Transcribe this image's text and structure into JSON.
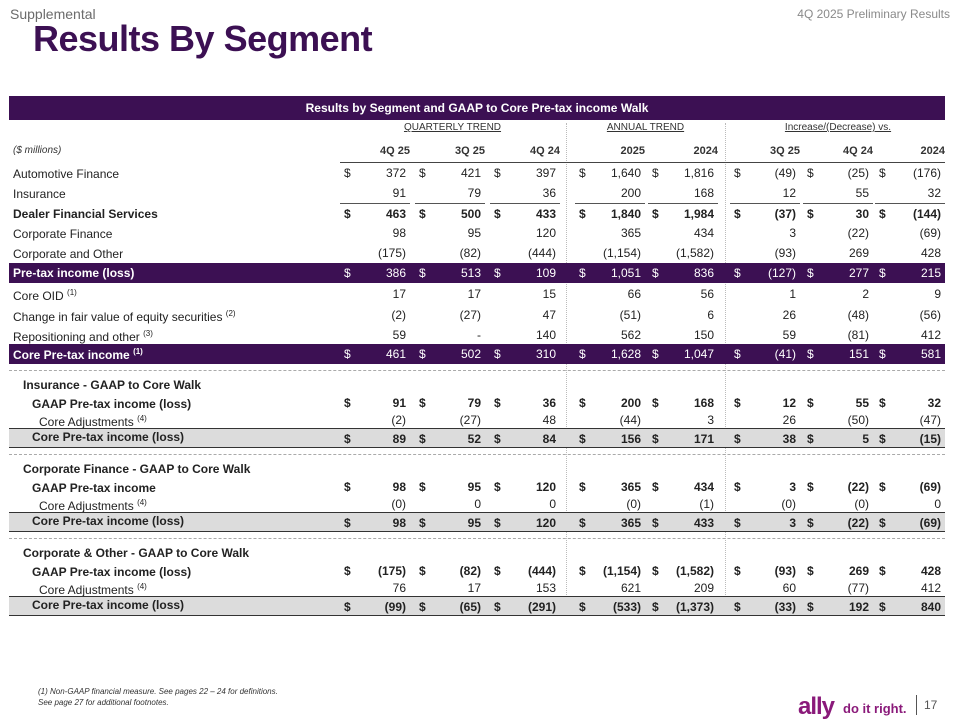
{
  "header": {
    "section": "Supplemental",
    "report": "4Q 2025 Preliminary Results",
    "title": "Results By Segment"
  },
  "table": {
    "title": "Results by Segment and GAAP to Core Pre-tax income Walk",
    "groups": {
      "quarterly": "QUARTERLY TREND",
      "annual": "ANNUAL TREND",
      "change": "Increase/(Decrease) vs."
    },
    "units": "($ millions)",
    "columns": [
      "4Q 25",
      "3Q 25",
      "4Q 24",
      "2025",
      "2024",
      "3Q 25",
      "4Q 24",
      "2024"
    ],
    "rows": [
      {
        "label": "Automotive Finance",
        "sup": "",
        "values": [
          "372",
          "421",
          "397",
          "1,640",
          "1,816",
          "(49)",
          "(25)",
          "(176)"
        ],
        "dollars": true
      },
      {
        "label": "Insurance",
        "sup": "",
        "values": [
          "91",
          "79",
          "36",
          "200",
          "168",
          "12",
          "55",
          "32"
        ]
      },
      {
        "label": "Dealer Financial Services",
        "sup": "",
        "values": [
          "463",
          "500",
          "433",
          "1,840",
          "1,984",
          "(37)",
          "30",
          "(144)"
        ],
        "dollars": true
      },
      {
        "label": "Corporate Finance",
        "sup": "",
        "values": [
          "98",
          "95",
          "120",
          "365",
          "434",
          "3",
          "(22)",
          "(69)"
        ]
      },
      {
        "label": "Corporate and Other",
        "sup": "",
        "values": [
          "(175)",
          "(82)",
          "(444)",
          "(1,154)",
          "(1,582)",
          "(93)",
          "269",
          "428"
        ]
      },
      {
        "label": "Pre-tax income (loss)",
        "sup": "",
        "values": [
          "386",
          "513",
          "109",
          "1,051",
          "836",
          "(127)",
          "277",
          "215"
        ],
        "dollars": true
      },
      {
        "label": "Core OID",
        "sup": "(1)",
        "values": [
          "17",
          "17",
          "15",
          "66",
          "56",
          "1",
          "2",
          "9"
        ]
      },
      {
        "label": "Change in fair value of equity securities",
        "sup": "(2)",
        "values": [
          "(2)",
          "(27)",
          "47",
          "(51)",
          "6",
          "26",
          "(48)",
          "(56)"
        ]
      },
      {
        "label": "Repositioning and other",
        "sup": "(3)",
        "values": [
          "59",
          "-",
          "140",
          "562",
          "150",
          "59",
          "(81)",
          "412"
        ]
      },
      {
        "label": "Core Pre-tax income",
        "sup": "(1)",
        "values": [
          "461",
          "502",
          "310",
          "1,628",
          "1,047",
          "(41)",
          "151",
          "581"
        ],
        "dollars": true
      }
    ],
    "sections": [
      {
        "title": "Insurance - GAAP to Core Walk",
        "rows": [
          {
            "label": "GAAP Pre-tax income (loss)",
            "sup": "",
            "values": [
              "91",
              "79",
              "36",
              "200",
              "168",
              "12",
              "55",
              "32"
            ],
            "dollars": true
          },
          {
            "label": "Core Adjustments",
            "sup": "(4)",
            "values": [
              "(2)",
              "(27)",
              "48",
              "(44)",
              "3",
              "26",
              "(50)",
              "(47)"
            ]
          },
          {
            "label": "Core Pre-tax income (loss)",
            "sup": "",
            "values": [
              "89",
              "52",
              "84",
              "156",
              "171",
              "38",
              "5",
              "(15)"
            ],
            "dollars": true
          }
        ]
      },
      {
        "title": "Corporate Finance - GAAP to Core Walk",
        "rows": [
          {
            "label": "GAAP Pre-tax income",
            "sup": "",
            "values": [
              "98",
              "95",
              "120",
              "365",
              "434",
              "3",
              "(22)",
              "(69)"
            ],
            "dollars": true
          },
          {
            "label": "Core Adjustments",
            "sup": "(4)",
            "values": [
              "(0)",
              "0",
              "0",
              "(0)",
              "(1)",
              "(0)",
              "(0)",
              "0"
            ]
          },
          {
            "label": "Core Pre-tax income (loss)",
            "sup": "",
            "values": [
              "98",
              "95",
              "120",
              "365",
              "433",
              "3",
              "(22)",
              "(69)"
            ],
            "dollars": true
          }
        ]
      },
      {
        "title": "Corporate & Other - GAAP to Core Walk",
        "rows": [
          {
            "label": "GAAP Pre-tax income (loss)",
            "sup": "",
            "values": [
              "(175)",
              "(82)",
              "(444)",
              "(1,154)",
              "(1,582)",
              "(93)",
              "269",
              "428"
            ],
            "dollars": true
          },
          {
            "label": "Core Adjustments",
            "sup": "(4)",
            "values": [
              "76",
              "17",
              "153",
              "621",
              "209",
              "60",
              "(77)",
              "412"
            ]
          },
          {
            "label": "Core Pre-tax income (loss)",
            "sup": "",
            "values": [
              "(99)",
              "(65)",
              "(291)",
              "(533)",
              "(1,373)",
              "(33)",
              "192",
              "840"
            ],
            "dollars": true
          }
        ]
      }
    ]
  },
  "footnotes": {
    "note1": "(1)      Non-GAAP financial measure. See pages 22 – 24 for definitions.",
    "note2": "See page 27 for additional footnotes."
  },
  "brand": {
    "logo": "ally",
    "slogan": "do it right."
  },
  "page_number": "17",
  "colors": {
    "brand_purple": "#3c1053",
    "logo_magenta": "#8a1a7a"
  }
}
